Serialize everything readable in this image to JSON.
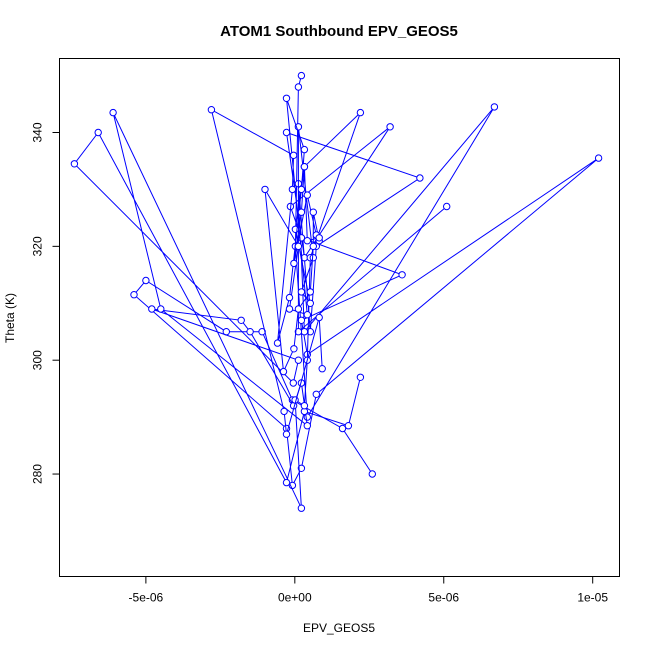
{
  "chart_data": {
    "type": "line",
    "title": "ATOM1 Southbound EPV_GEOS5",
    "xlabel": "EPV_GEOS5",
    "ylabel": "Theta (K)",
    "xlim": [
      -7.9e-06,
      1.09e-05
    ],
    "ylim": [
      262,
      353
    ],
    "xticks": [
      {
        "value": -5e-06,
        "label": "-5e-06"
      },
      {
        "value": 0,
        "label": "0e+00"
      },
      {
        "value": 5e-06,
        "label": "5e-06"
      },
      {
        "value": 1e-05,
        "label": "1e-05"
      }
    ],
    "yticks": [
      {
        "value": 280,
        "label": "280"
      },
      {
        "value": 300,
        "label": "300"
      },
      {
        "value": 320,
        "label": "320"
      },
      {
        "value": 340,
        "label": "340"
      }
    ],
    "grid": false,
    "legend": "none",
    "marker": "open-circle",
    "series": [
      {
        "x": [
          2.6e-06,
          1.6e-06,
          -8e-08,
          -1.1e-06,
          -2.3e-06,
          -5e-06,
          -5.4e-06,
          -2.8e-07,
          -8e-08,
          2.2e-07,
          7.2e-07,
          1.02e-05,
          4.2e-07,
          2.2e-07,
          3.6e-06,
          2.2e-07,
          -1.5e-07,
          3.2e-06,
          3.2e-07,
          -2.8e-07,
          4.2e-06,
          7.2e-07,
          5.2e-07,
          1.2e-07,
          3.2e-07,
          6.7e-06,
          4.2e-07,
          2e-08,
          1.2e-07,
          2.2e-07
        ],
        "y": [
          280,
          288,
          293,
          305,
          305,
          314,
          311.5,
          288,
          278,
          281,
          294,
          335.5,
          301,
          307,
          315,
          321.5,
          327,
          341,
          318,
          340,
          332,
          320,
          305,
          331,
          305,
          344.5,
          290,
          320,
          348,
          350
        ]
      },
      {
        "x": [
          2.2e-06,
          1.8e-06,
          3.2e-07,
          -2.8e-07,
          -6.6e-06,
          -7.4e-06,
          -5e-08,
          1.2e-07,
          -4.8e-06,
          -1.8e-06,
          -1.5e-06,
          -4e-08,
          2.2e-07,
          4.2e-07,
          -4.5e-06,
          -6.1e-06,
          2.2e-07,
          1e-08,
          3.2e-07,
          4.2e-07,
          5.2e-07,
          2.2e-06,
          3.2e-07,
          2e-08,
          5.2e-07,
          2.2e-07,
          6.2e-07,
          1.2e-07,
          1.2e-07,
          5.1e-06
        ],
        "y": [
          297,
          288.5,
          291,
          278.5,
          340,
          334.5,
          296,
          300,
          309,
          307,
          305,
          292,
          296,
          288.5,
          309,
          343.5,
          274,
          293,
          292,
          300,
          318,
          343.5,
          334,
          323,
          310,
          312,
          318,
          341,
          305,
          327
        ]
      },
      {
        "x": [
          9.2e-07,
          8.2e-07,
          -2.8e-07,
          -3.6e-07,
          -2.8e-06,
          -4e-08,
          -8e-08,
          -5.8e-07,
          -1.8e-07,
          2.2e-07,
          3.2e-07,
          -2.8e-07,
          4.2e-07,
          -1.8e-07,
          1.2e-07,
          -1e-06,
          -3.8e-07,
          -3e-08,
          1.2e-07,
          5.2e-07,
          6.2e-07,
          6.2e-07,
          8.2e-07,
          7.2e-07,
          4.2e-07,
          -3e-08,
          2.2e-07,
          3.2e-07,
          4.2e-07,
          8.2e-07
        ],
        "y": [
          298.5,
          307.5,
          287,
          291,
          344,
          336,
          330,
          303,
          311,
          330,
          337,
          346,
          308,
          309,
          320,
          330,
          298,
          302,
          309,
          312,
          320,
          326,
          321,
          322,
          329,
          317,
          326,
          334,
          321,
          321.5
        ]
      }
    ]
  }
}
